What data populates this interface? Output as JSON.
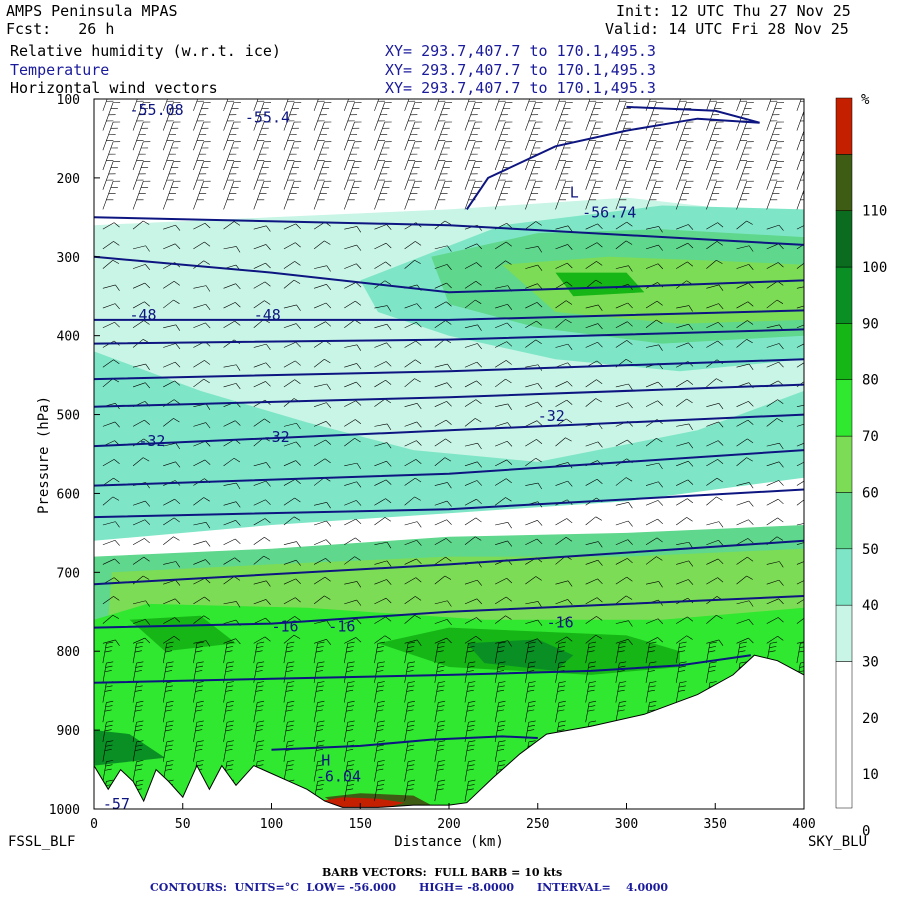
{
  "header": {
    "model": "AMPS Peninsula MPAS",
    "fcst": "Fcst:   26 h",
    "init": "Init: 12 UTC Thu 27 Nov 25",
    "valid": "Valid: 14 UTC Fri 28 Nov 25",
    "field1": "Relative humidity (w.r.t. ice)",
    "field2": "Temperature",
    "field3": "Horizontal wind vectors",
    "xy1": "XY= 293.7,407.7 to 170.1,495.3",
    "xy2": "XY= 293.7,407.7 to 170.1,495.3",
    "xy3": "XY= 293.7,407.7 to 170.1,495.3"
  },
  "footer": {
    "left_station": "FSSL_BLF",
    "right_station": "SKY_BLU",
    "barb_note": "BARB VECTORS:  FULL BARB = 10 kts",
    "contours_note": "CONTOURS:  UNITS=°C  LOW= -56.000      HIGH= -8.0000      INTERVAL=    4.0000"
  },
  "colors": {
    "contour": "#0d1580",
    "rh_30_40": "#c8f5e6",
    "rh_40_50": "#7ee6c6",
    "rh_50_60": "#5fd78c",
    "rh_60_70": "#7ddc55",
    "rh_70_80": "#2fe82f",
    "rh_80_90": "#16b616",
    "rh_90_100": "#0a8f24",
    "rh_100_110": "#0b6b1e",
    "rh_110_plus": "#3f5c14",
    "rh_top": "#c42000",
    "terrain": "#ffffff"
  },
  "chart_data": {
    "type": "cross-section",
    "xlabel": "Distance (km)",
    "ylabel": "Pressure (hPa)",
    "xlim": [
      0,
      400
    ],
    "ylim": [
      1000,
      100
    ],
    "xticks": [
      0,
      50,
      100,
      150,
      200,
      250,
      300,
      350,
      400
    ],
    "yticks": [
      100,
      200,
      300,
      400,
      500,
      600,
      700,
      800,
      900,
      1000
    ],
    "colorbar": {
      "unit": "%",
      "ticks": [
        0,
        10,
        20,
        30,
        40,
        50,
        60,
        70,
        80,
        90,
        100,
        110
      ],
      "bins": [
        {
          "range": "<30",
          "color": "#ffffff"
        },
        {
          "range": "30-40",
          "color": "#c8f5e6"
        },
        {
          "range": "40-50",
          "color": "#7ee6c6"
        },
        {
          "range": "50-60",
          "color": "#5fd78c"
        },
        {
          "range": "60-70",
          "color": "#7ddc55"
        },
        {
          "range": "70-80",
          "color": "#2fe82f"
        },
        {
          "range": "80-90",
          "color": "#16b616"
        },
        {
          "range": "90-100",
          "color": "#0a8f24"
        },
        {
          "range": "100-110",
          "color": "#0b6b1e"
        },
        {
          "range": "110+",
          "color": "#3f5c14"
        },
        {
          "range": "top",
          "color": "#c42000"
        }
      ]
    },
    "terrain": [
      {
        "x": 0,
        "p": 945
      },
      {
        "x": 8,
        "p": 975
      },
      {
        "x": 15,
        "p": 950
      },
      {
        "x": 22,
        "p": 965
      },
      {
        "x": 28,
        "p": 990
      },
      {
        "x": 35,
        "p": 950
      },
      {
        "x": 42,
        "p": 965
      },
      {
        "x": 50,
        "p": 985
      },
      {
        "x": 58,
        "p": 945
      },
      {
        "x": 65,
        "p": 975
      },
      {
        "x": 72,
        "p": 945
      },
      {
        "x": 80,
        "p": 970
      },
      {
        "x": 90,
        "p": 945
      },
      {
        "x": 100,
        "p": 955
      },
      {
        "x": 110,
        "p": 965
      },
      {
        "x": 120,
        "p": 975
      },
      {
        "x": 130,
        "p": 990
      },
      {
        "x": 140,
        "p": 998
      },
      {
        "x": 160,
        "p": 998
      },
      {
        "x": 180,
        "p": 995
      },
      {
        "x": 200,
        "p": 995
      },
      {
        "x": 210,
        "p": 992
      },
      {
        "x": 225,
        "p": 960
      },
      {
        "x": 240,
        "p": 930
      },
      {
        "x": 255,
        "p": 905
      },
      {
        "x": 280,
        "p": 895
      },
      {
        "x": 310,
        "p": 880
      },
      {
        "x": 340,
        "p": 855
      },
      {
        "x": 360,
        "p": 830
      },
      {
        "x": 372,
        "p": 805
      },
      {
        "x": 385,
        "p": 812
      },
      {
        "x": 400,
        "p": 830
      }
    ],
    "isotherms": [
      {
        "value": -56,
        "points": [
          [
            210,
            240
          ],
          [
            222,
            200
          ],
          [
            260,
            160
          ],
          [
            300,
            140
          ],
          [
            340,
            125
          ],
          [
            375,
            130
          ],
          [
            350,
            115
          ],
          [
            300,
            110
          ]
        ]
      },
      {
        "value": -52,
        "points": [
          [
            0,
            250
          ],
          [
            200,
            260
          ],
          [
            400,
            285
          ]
        ]
      },
      {
        "value": -48,
        "points": [
          [
            0,
            300
          ],
          [
            100,
            320
          ],
          [
            200,
            345
          ],
          [
            300,
            338
          ],
          [
            400,
            330
          ]
        ]
      },
      {
        "value": -48,
        "points": [
          [
            0,
            380
          ],
          [
            200,
            380
          ],
          [
            400,
            368
          ]
        ]
      },
      {
        "value": -44,
        "points": [
          [
            0,
            410
          ],
          [
            200,
            405
          ],
          [
            400,
            392
          ]
        ]
      },
      {
        "value": -40,
        "points": [
          [
            0,
            455
          ],
          [
            200,
            445
          ],
          [
            400,
            430
          ]
        ]
      },
      {
        "value": -36,
        "points": [
          [
            0,
            490
          ],
          [
            200,
            478
          ],
          [
            400,
            462
          ]
        ]
      },
      {
        "value": -32,
        "points": [
          [
            0,
            540
          ],
          [
            200,
            520
          ],
          [
            400,
            500
          ]
        ]
      },
      {
        "value": -28,
        "points": [
          [
            0,
            590
          ],
          [
            200,
            575
          ],
          [
            400,
            545
          ]
        ]
      },
      {
        "value": -24,
        "points": [
          [
            0,
            630
          ],
          [
            200,
            620
          ],
          [
            400,
            595
          ]
        ]
      },
      {
        "value": -20,
        "points": [
          [
            0,
            715
          ],
          [
            200,
            690
          ],
          [
            400,
            660
          ]
        ]
      },
      {
        "value": -16,
        "points": [
          [
            0,
            770
          ],
          [
            100,
            765
          ],
          [
            200,
            750
          ],
          [
            300,
            740
          ],
          [
            400,
            730
          ]
        ]
      },
      {
        "value": -12,
        "points": [
          [
            0,
            840
          ],
          [
            100,
            835
          ],
          [
            200,
            830
          ],
          [
            280,
            825
          ],
          [
            330,
            818
          ],
          [
            370,
            805
          ]
        ]
      },
      {
        "value": -8,
        "points": [
          [
            100,
            925
          ],
          [
            150,
            920
          ],
          [
            190,
            912
          ],
          [
            230,
            908
          ],
          [
            250,
            910
          ]
        ]
      }
    ],
    "contour_labels": [
      {
        "text": "-55.08",
        "x": 20,
        "p": 120
      },
      {
        "text": "-55.4",
        "x": 85,
        "p": 130
      },
      {
        "text": "L",
        "x": 268,
        "p": 225
      },
      {
        "text": "-56.74",
        "x": 275,
        "p": 250
      },
      {
        "text": "-48",
        "x": 20,
        "p": 380
      },
      {
        "text": "-48",
        "x": 90,
        "p": 380
      },
      {
        "text": "-32",
        "x": 250,
        "p": 508
      },
      {
        "text": "-32",
        "x": 25,
        "p": 540
      },
      {
        "text": "-32",
        "x": 95,
        "p": 535
      },
      {
        "text": "-16",
        "x": 100,
        "p": 775
      },
      {
        "text": "-16",
        "x": 132,
        "p": 775
      },
      {
        "text": "-16",
        "x": 255,
        "p": 770
      },
      {
        "text": "H",
        "x": 128,
        "p": 945
      },
      {
        "text": "-6.04",
        "x": 125,
        "p": 965
      },
      {
        "text": "-57",
        "x": 5,
        "p": 1000
      }
    ],
    "rh_regions": [
      {
        "bin": "30-40",
        "points": [
          [
            0,
            640
          ],
          [
            50,
            620
          ],
          [
            150,
            600
          ],
          [
            250,
            595
          ],
          [
            400,
            560
          ],
          [
            400,
            250
          ],
          [
            300,
            225
          ],
          [
            200,
            240
          ],
          [
            100,
            250
          ],
          [
            0,
            260
          ]
        ]
      },
      {
        "bin": "40-50",
        "points": [
          [
            0,
            660
          ],
          [
            100,
            640
          ],
          [
            200,
            625
          ],
          [
            300,
            610
          ],
          [
            400,
            580
          ],
          [
            400,
            470
          ],
          [
            340,
            520
          ],
          [
            250,
            560
          ],
          [
            180,
            545
          ],
          [
            120,
            510
          ],
          [
            60,
            470
          ],
          [
            0,
            420
          ]
        ]
      },
      {
        "bin": "40-50",
        "points": [
          [
            150,
            330
          ],
          [
            230,
            260
          ],
          [
            320,
            235
          ],
          [
            400,
            240
          ],
          [
            400,
            430
          ],
          [
            330,
            445
          ],
          [
            260,
            430
          ],
          [
            200,
            400
          ],
          [
            160,
            370
          ]
        ]
      },
      {
        "bin": "50-60",
        "points": [
          [
            0,
            680
          ],
          [
            100,
            670
          ],
          [
            200,
            655
          ],
          [
            300,
            650
          ],
          [
            400,
            640
          ],
          [
            400,
            1000
          ],
          [
            0,
            1000
          ]
        ]
      },
      {
        "bin": "50-60",
        "points": [
          [
            190,
            300
          ],
          [
            250,
            270
          ],
          [
            320,
            265
          ],
          [
            400,
            275
          ],
          [
            400,
            400
          ],
          [
            320,
            410
          ],
          [
            250,
            390
          ],
          [
            200,
            360
          ]
        ]
      },
      {
        "bin": "60-70",
        "points": [
          [
            10,
            700
          ],
          [
            100,
            690
          ],
          [
            200,
            680
          ],
          [
            300,
            680
          ],
          [
            400,
            670
          ],
          [
            400,
            1000
          ],
          [
            0,
            1000
          ]
        ]
      },
      {
        "bin": "60-70",
        "points": [
          [
            230,
            310
          ],
          [
            290,
            300
          ],
          [
            350,
            305
          ],
          [
            400,
            310
          ],
          [
            400,
            380
          ],
          [
            330,
            385
          ],
          [
            260,
            370
          ]
        ]
      },
      {
        "bin": "70-80",
        "points": [
          [
            30,
            740
          ],
          [
            120,
            745
          ],
          [
            220,
            760
          ],
          [
            320,
            760
          ],
          [
            400,
            745
          ],
          [
            400,
            1000
          ],
          [
            0,
            1000
          ],
          [
            0,
            760
          ]
        ]
      },
      {
        "bin": "80-90",
        "points": [
          [
            20,
            760
          ],
          [
            60,
            755
          ],
          [
            80,
            790
          ],
          [
            40,
            800
          ]
        ]
      },
      {
        "bin": "80-90",
        "points": [
          [
            160,
            790
          ],
          [
            200,
            770
          ],
          [
            300,
            780
          ],
          [
            330,
            800
          ],
          [
            330,
            820
          ],
          [
            280,
            830
          ],
          [
            200,
            820
          ]
        ]
      },
      {
        "bin": "80-90",
        "points": [
          [
            260,
            320
          ],
          [
            300,
            320
          ],
          [
            310,
            345
          ],
          [
            270,
            350
          ]
        ]
      },
      {
        "bin": "90-100",
        "points": [
          [
            210,
            790
          ],
          [
            250,
            785
          ],
          [
            270,
            805
          ],
          [
            260,
            825
          ],
          [
            220,
            815
          ]
        ]
      },
      {
        "bin": "90-100",
        "points": [
          [
            0,
            900
          ],
          [
            20,
            905
          ],
          [
            40,
            935
          ],
          [
            0,
            945
          ]
        ]
      },
      {
        "bin": "110+",
        "points": [
          [
            130,
            985
          ],
          [
            150,
            980
          ],
          [
            180,
            983
          ],
          [
            190,
            995
          ],
          [
            140,
            998
          ]
        ]
      },
      {
        "bin": "top",
        "points": [
          [
            127,
            990
          ],
          [
            140,
            985
          ],
          [
            160,
            987
          ],
          [
            175,
            992
          ],
          [
            165,
            998
          ],
          [
            125,
            998
          ]
        ]
      }
    ],
    "wind_field": {
      "upper_levels": "strong west-northwest flow with full barbs, 100-250 hPa",
      "mid_levels": "light southwesterly, half barbs, 250-800 hPa",
      "lower_levels": "stronger barbs near terrain, 800-1000 hPa"
    }
  }
}
